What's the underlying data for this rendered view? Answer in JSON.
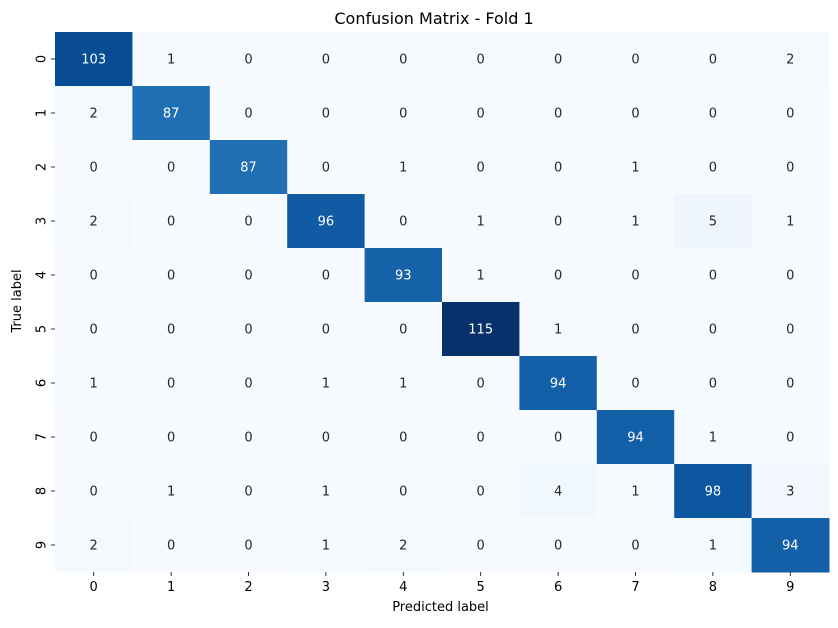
{
  "chart_data": {
    "type": "heatmap",
    "title": "Confusion Matrix - Fold 1",
    "xlabel": "Predicted label",
    "ylabel": "True label",
    "x_categories": [
      "0",
      "1",
      "2",
      "3",
      "4",
      "5",
      "6",
      "7",
      "8",
      "9"
    ],
    "y_categories": [
      "0",
      "1",
      "2",
      "3",
      "4",
      "5",
      "6",
      "7",
      "8",
      "9"
    ],
    "values": [
      [
        103,
        1,
        0,
        0,
        0,
        0,
        0,
        0,
        0,
        2
      ],
      [
        2,
        87,
        0,
        0,
        0,
        0,
        0,
        0,
        0,
        0
      ],
      [
        0,
        0,
        87,
        0,
        1,
        0,
        0,
        1,
        0,
        0
      ],
      [
        2,
        0,
        0,
        96,
        0,
        1,
        0,
        1,
        5,
        1
      ],
      [
        0,
        0,
        0,
        0,
        93,
        1,
        0,
        0,
        0,
        0
      ],
      [
        0,
        0,
        0,
        0,
        0,
        115,
        1,
        0,
        0,
        0
      ],
      [
        1,
        0,
        0,
        1,
        1,
        0,
        94,
        0,
        0,
        0
      ],
      [
        0,
        0,
        0,
        0,
        0,
        0,
        0,
        94,
        1,
        0
      ],
      [
        0,
        1,
        0,
        1,
        0,
        0,
        4,
        1,
        98,
        3
      ],
      [
        2,
        0,
        0,
        1,
        2,
        0,
        0,
        0,
        1,
        94
      ]
    ],
    "colormap": "Blues",
    "value_range": [
      0,
      115
    ],
    "colorbar": false
  }
}
